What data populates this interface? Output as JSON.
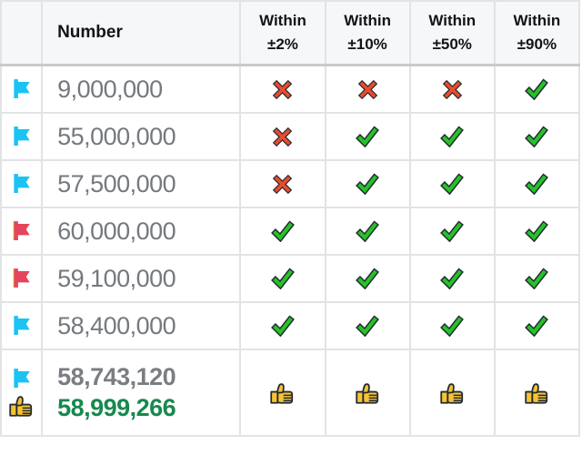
{
  "table": {
    "headers": {
      "icon": "",
      "number": "Number",
      "within": [
        {
          "line1": "Within",
          "line2": "±2%"
        },
        {
          "line1": "Within",
          "line2": "±10%"
        },
        {
          "line1": "Within",
          "line2": "±50%"
        },
        {
          "line1": "Within",
          "line2": "±90%"
        }
      ]
    },
    "rows": [
      {
        "flag": "blue-flag",
        "number": "9,000,000",
        "results": [
          "cross",
          "cross",
          "cross",
          "check"
        ]
      },
      {
        "flag": "blue-flag",
        "number": "55,000,000",
        "results": [
          "cross",
          "check",
          "check",
          "check"
        ]
      },
      {
        "flag": "blue-flag",
        "number": "57,500,000",
        "results": [
          "cross",
          "check",
          "check",
          "check"
        ]
      },
      {
        "flag": "red-flag",
        "number": "60,000,000",
        "results": [
          "check",
          "check",
          "check",
          "check"
        ]
      },
      {
        "flag": "red-flag",
        "number": "59,100,000",
        "results": [
          "check",
          "check",
          "check",
          "check"
        ]
      },
      {
        "flag": "blue-flag",
        "number": "58,400,000",
        "results": [
          "check",
          "check",
          "check",
          "check"
        ]
      }
    ],
    "final_row": {
      "icons": [
        "blue-flag",
        "thumbs-up"
      ],
      "numbers": [
        {
          "value": "58,743,120",
          "role": "muted"
        },
        {
          "value": "58,999,266",
          "role": "success"
        }
      ],
      "results": [
        "thumbs-up",
        "thumbs-up",
        "thumbs-up",
        "thumbs-up"
      ]
    }
  },
  "colors": {
    "flag_blue": "#1ac3f2",
    "flag_red": "#e5455c",
    "flag_pole_gold": "#edd94f",
    "check_green": "#26c226",
    "cross_red": "#e94b2c",
    "thumb_yellow": "#f8c331",
    "icon_outline": "#222b33",
    "number_gray": "#75797e",
    "final_green": "#17894e",
    "header_bg": "#f6f7f8"
  }
}
